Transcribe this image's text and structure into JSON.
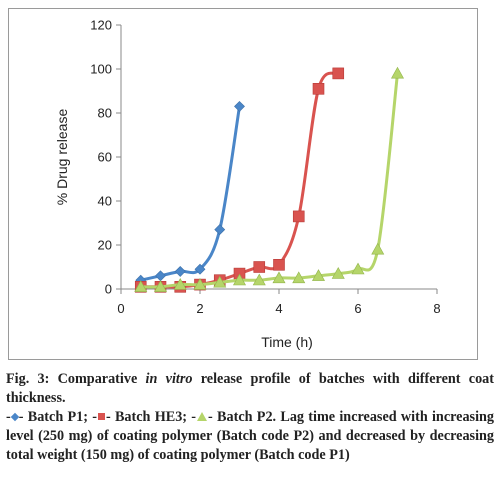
{
  "chart_data": {
    "type": "line",
    "xlabel": "Time (h)",
    "ylabel": "% Drug release",
    "xlim": [
      0,
      8
    ],
    "ylim": [
      0,
      120
    ],
    "xticks": [
      0,
      2,
      4,
      6,
      8
    ],
    "yticks": [
      0,
      20,
      40,
      60,
      80,
      100,
      120
    ],
    "grid": false,
    "series": [
      {
        "name": "Batch P1",
        "marker": "diamond",
        "color": "#4a86c8",
        "x": [
          0.5,
          1.0,
          1.5,
          2.0,
          2.5,
          3.0
        ],
        "y": [
          4,
          6,
          8,
          9,
          27,
          83
        ]
      },
      {
        "name": "Batch HE3",
        "marker": "square",
        "color": "#d9534f",
        "x": [
          0.5,
          1.0,
          1.5,
          2.0,
          2.5,
          3.0,
          3.5,
          4.0,
          4.5,
          5.0,
          5.5
        ],
        "y": [
          1,
          1,
          1,
          2,
          4,
          7,
          10,
          11,
          33,
          91,
          98
        ]
      },
      {
        "name": "Batch P2",
        "marker": "triangle",
        "color": "#b5d56a",
        "x": [
          0.5,
          1.0,
          1.5,
          2.0,
          2.5,
          3.0,
          3.5,
          4.0,
          4.5,
          5.0,
          5.5,
          6.0,
          6.5,
          7.0
        ],
        "y": [
          1,
          1,
          2,
          2,
          3,
          4,
          4,
          5,
          5,
          6,
          7,
          9,
          18,
          98
        ]
      }
    ]
  },
  "caption": {
    "fig_prefix": "Fig. 3: Comparative ",
    "fig_italic": "in vitro",
    "fig_suffix": " release profile of batches with different coat thickness.",
    "legend_p1_prefix": "-",
    "legend_p1_label": "- Batch P1; -",
    "legend_he3_label": "- Batch HE3; -",
    "legend_p2_label": "- Batch P2. Lag time increased with increasing level (250 mg) of coating polymer (Batch code P2) and decreased by decreasing total weight (150 mg) of coating polymer (Batch code P1)"
  }
}
